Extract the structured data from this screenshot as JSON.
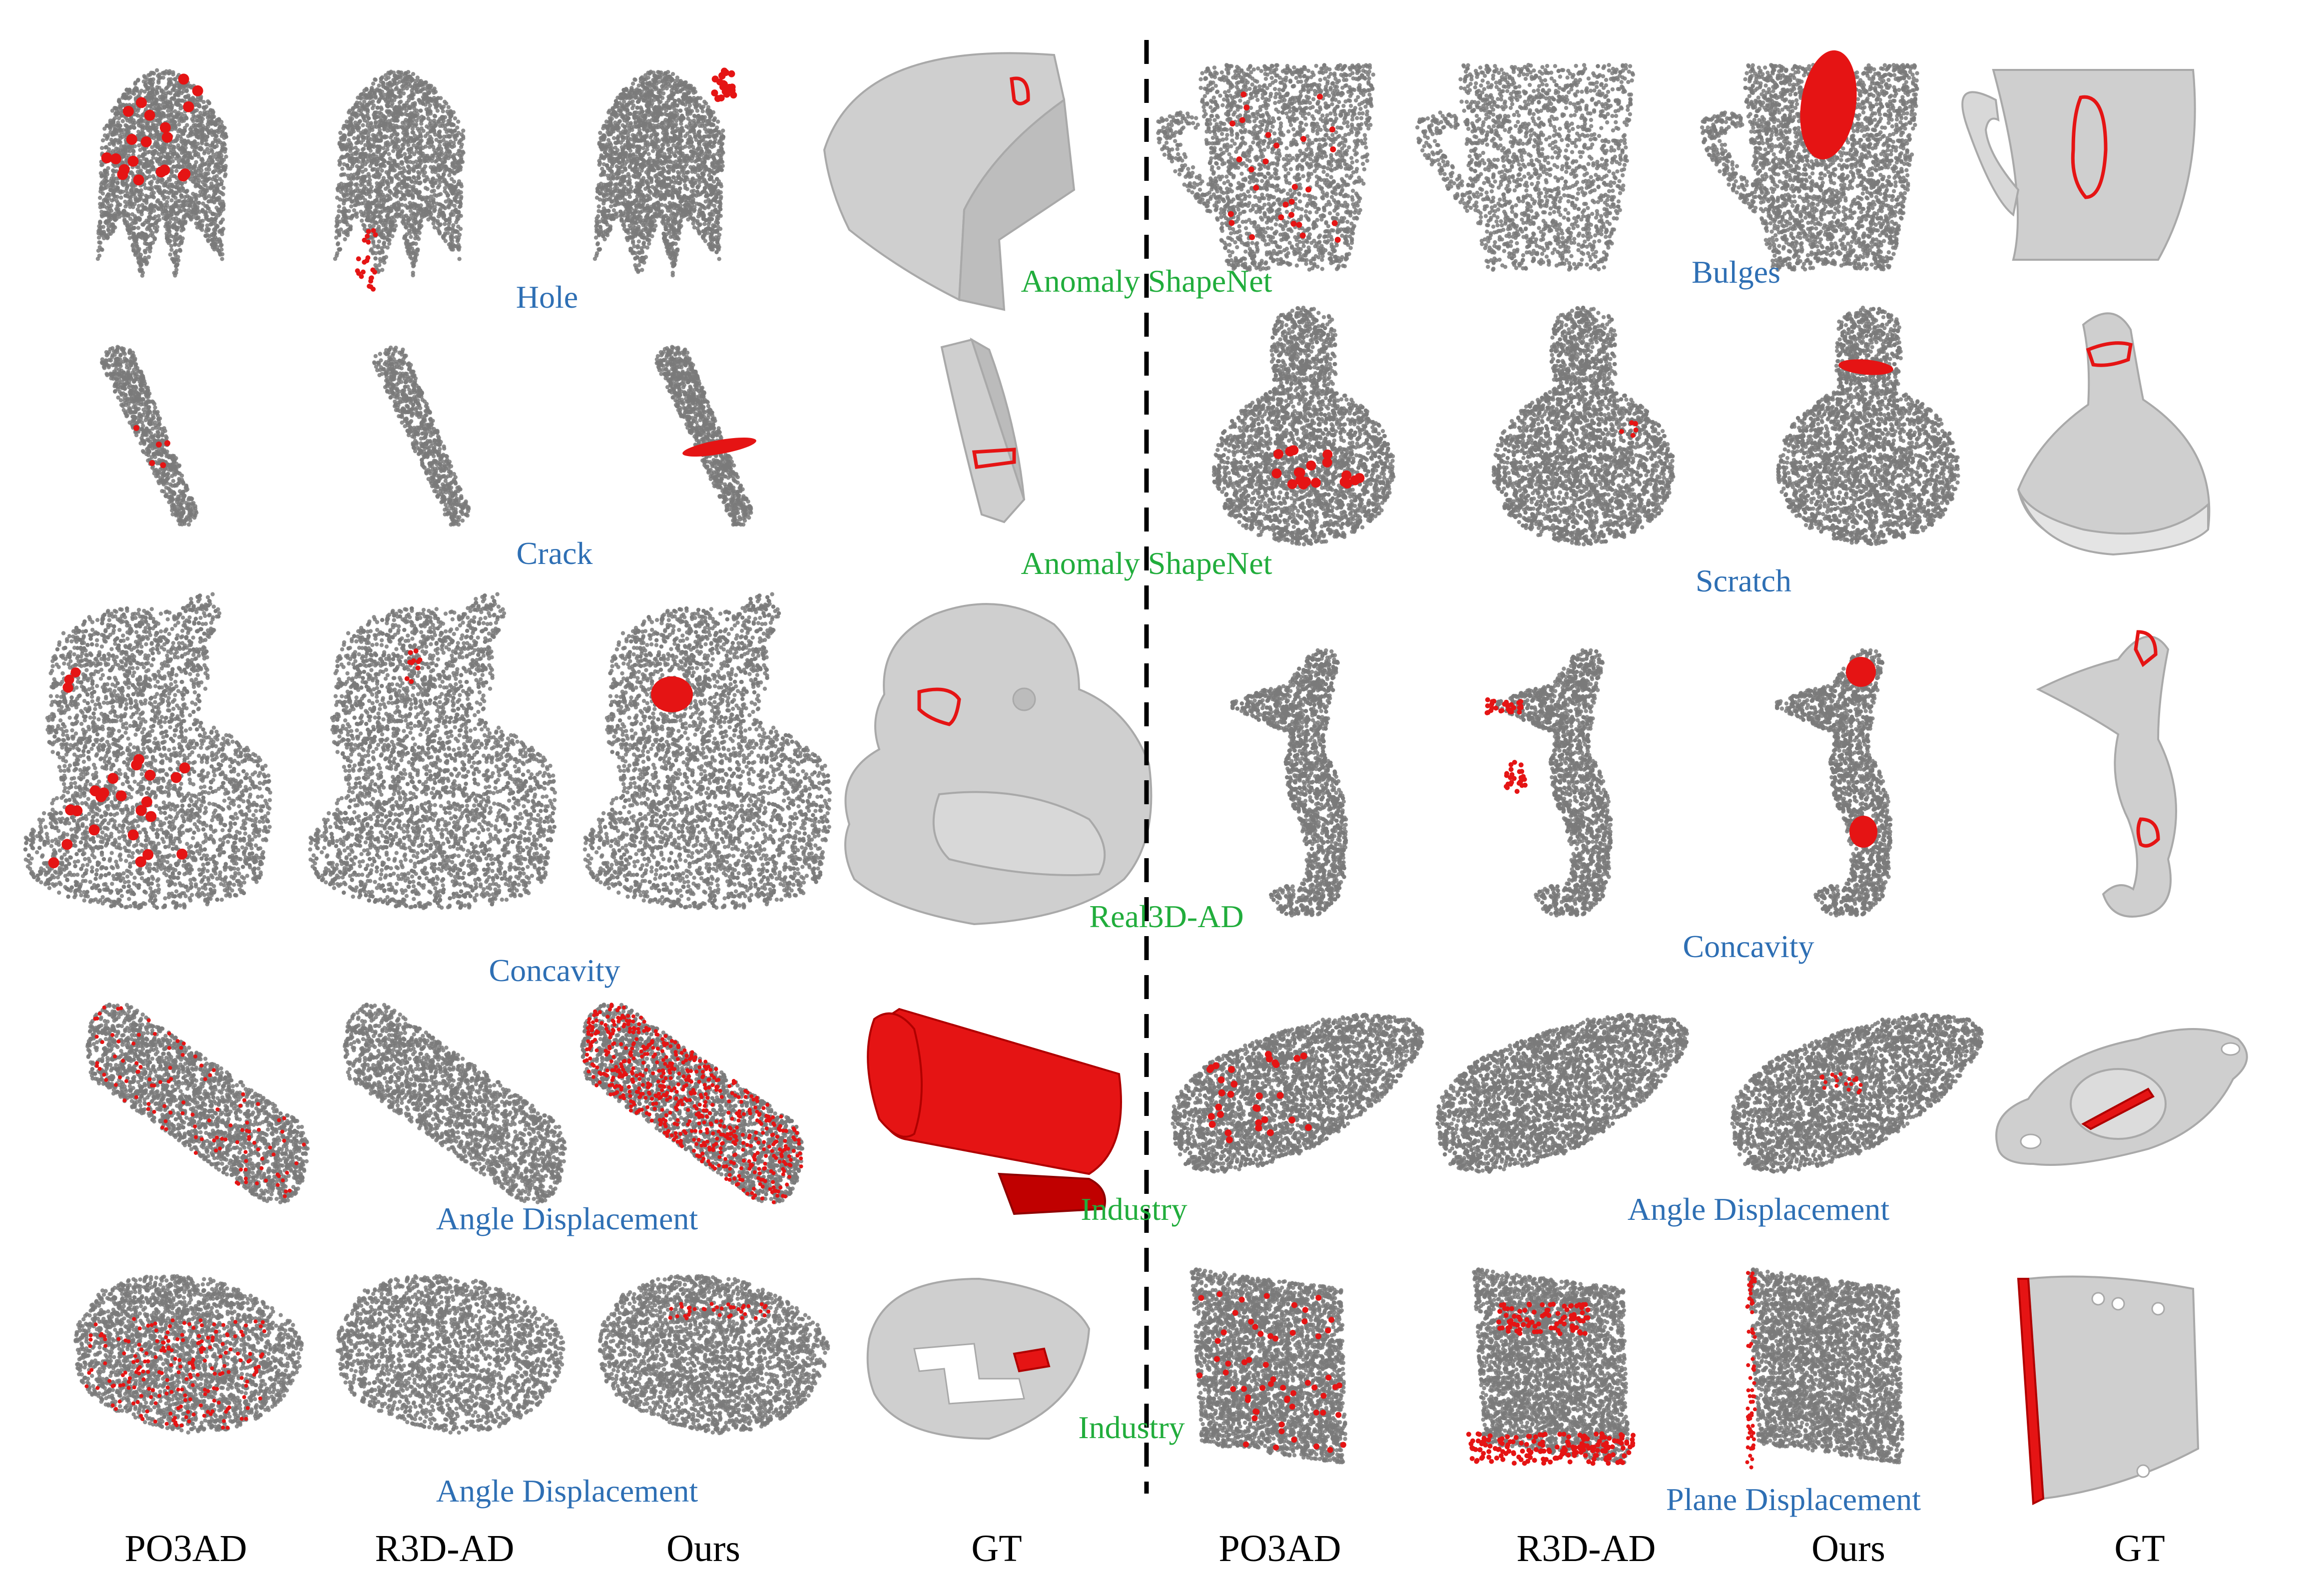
{
  "colors": {
    "background": "#ffffff",
    "point": "#7a7a7a",
    "anomaly": "#e51414",
    "mesh": "#cfcfcf",
    "mesh_shade": "#a9a9a9",
    "anomaly_label": "#2e6fb4",
    "dataset_label": "#21ad3c",
    "divider": "#000000"
  },
  "columns": {
    "left": [
      "PO3AD",
      "R3D-AD",
      "Ours",
      "GT"
    ],
    "right": [
      "PO3AD",
      "R3D-AD",
      "Ours",
      "GT"
    ]
  },
  "rows": [
    {
      "left": {
        "object": "helmet",
        "anomaly": "Hole",
        "dataset": "Anomaly ShapeNet"
      },
      "right": {
        "object": "cup",
        "anomaly": "Bulges"
      }
    },
    {
      "left": {
        "object": "stick",
        "anomaly": "Crack",
        "dataset": "Anomaly ShapeNet"
      },
      "right": {
        "object": "bulb",
        "anomaly": "Scratch"
      }
    },
    {
      "left": {
        "object": "duck",
        "anomaly": "Concavity",
        "dataset": "Real3D-AD"
      },
      "right": {
        "object": "seahorse",
        "anomaly": "Concavity"
      }
    },
    {
      "left": {
        "object": "tube",
        "anomaly": "Angle Displacement",
        "dataset": "Industry"
      },
      "right": {
        "object": "flange",
        "anomaly": "Angle Displacement"
      }
    },
    {
      "left": {
        "object": "ring",
        "anomaly": "Angle Displacement",
        "dataset": "Industry"
      },
      "right": {
        "object": "plate",
        "anomaly": "Plane Displacement"
      }
    }
  ]
}
